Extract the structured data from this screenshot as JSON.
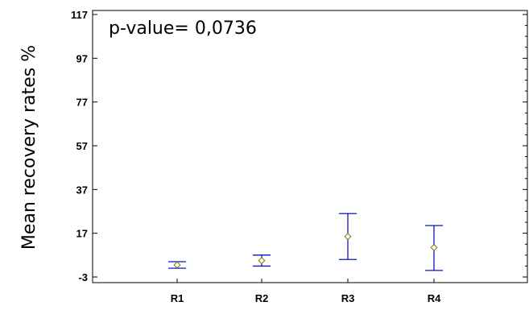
{
  "chart_data": {
    "type": "errorbar",
    "categories": [
      "R1",
      "R2",
      "R3",
      "R4"
    ],
    "series": [
      {
        "mean": [
          2.5,
          4.5,
          15.5,
          10.5
        ],
        "lower": [
          1.0,
          2.0,
          5.0,
          0.0
        ],
        "upper": [
          4.0,
          7.0,
          26.0,
          20.5
        ]
      }
    ],
    "ylabel": "Mean recovery rates %",
    "xlabel": "",
    "yticks": [
      -3,
      17,
      37,
      57,
      77,
      97,
      117
    ],
    "ylim": [
      -3,
      117
    ],
    "annotation": "p-value= 0,0736",
    "grid": false,
    "colors": {
      "errorbar": "#0a14c8",
      "marker": "#7a7a00",
      "axis": "#000000"
    }
  }
}
